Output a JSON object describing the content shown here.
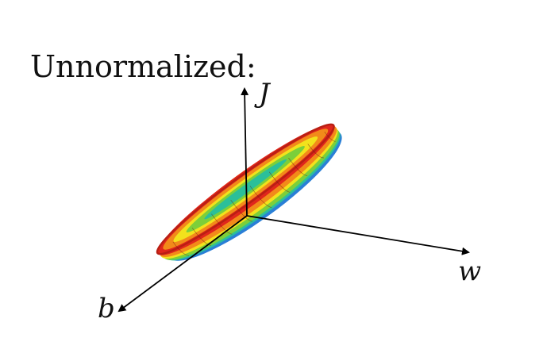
{
  "title": "Unnormalized:",
  "axes": {
    "vertical": "J",
    "right": "w",
    "left": "b"
  },
  "surface": {
    "description_colors": [
      "#e0261c",
      "#f28a1a",
      "#f2e21c",
      "#7ccf3a",
      "#2bbf9a",
      "#2a7fd6"
    ],
    "rim_color": "#d92a1c"
  }
}
